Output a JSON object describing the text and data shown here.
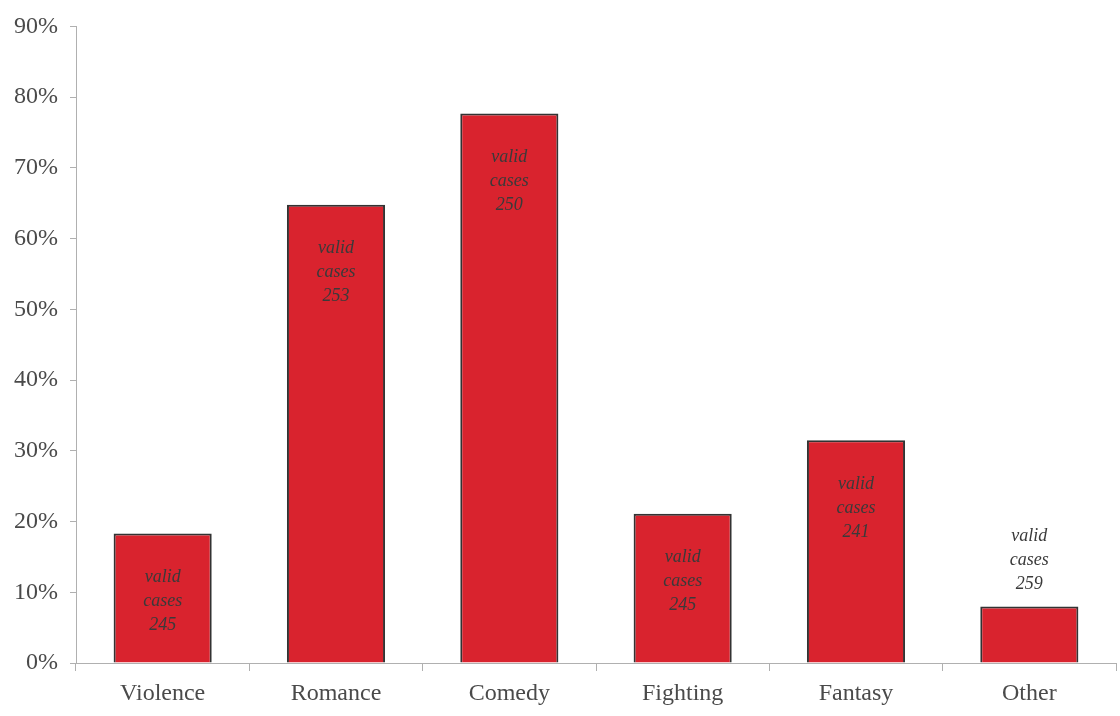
{
  "chart_data": {
    "type": "bar",
    "categories": [
      "Violence",
      "Romance",
      "Comedy",
      "Fighting",
      "Fantasy",
      "Other"
    ],
    "values": [
      18.3,
      64.8,
      77.7,
      21.1,
      31.5,
      8.0
    ],
    "color": "#d9232e",
    "ylim": [
      0,
      90
    ],
    "yticks": [
      {
        "value": 0,
        "label": "0%"
      },
      {
        "value": 10,
        "label": "10%"
      },
      {
        "value": 20,
        "label": "20%"
      },
      {
        "value": 30,
        "label": "30%"
      },
      {
        "value": 40,
        "label": "40%"
      },
      {
        "value": 50,
        "label": "50%"
      },
      {
        "value": 60,
        "label": "60%"
      },
      {
        "value": 70,
        "label": "70%"
      },
      {
        "value": 80,
        "label": "80%"
      },
      {
        "value": 90,
        "label": "90%"
      }
    ],
    "annotations": [
      "valid cases 245",
      "valid cases 253",
      "valid cases 250",
      "valid cases 245",
      "valid cases 241",
      "valid cases 259"
    ],
    "legend": false
  }
}
